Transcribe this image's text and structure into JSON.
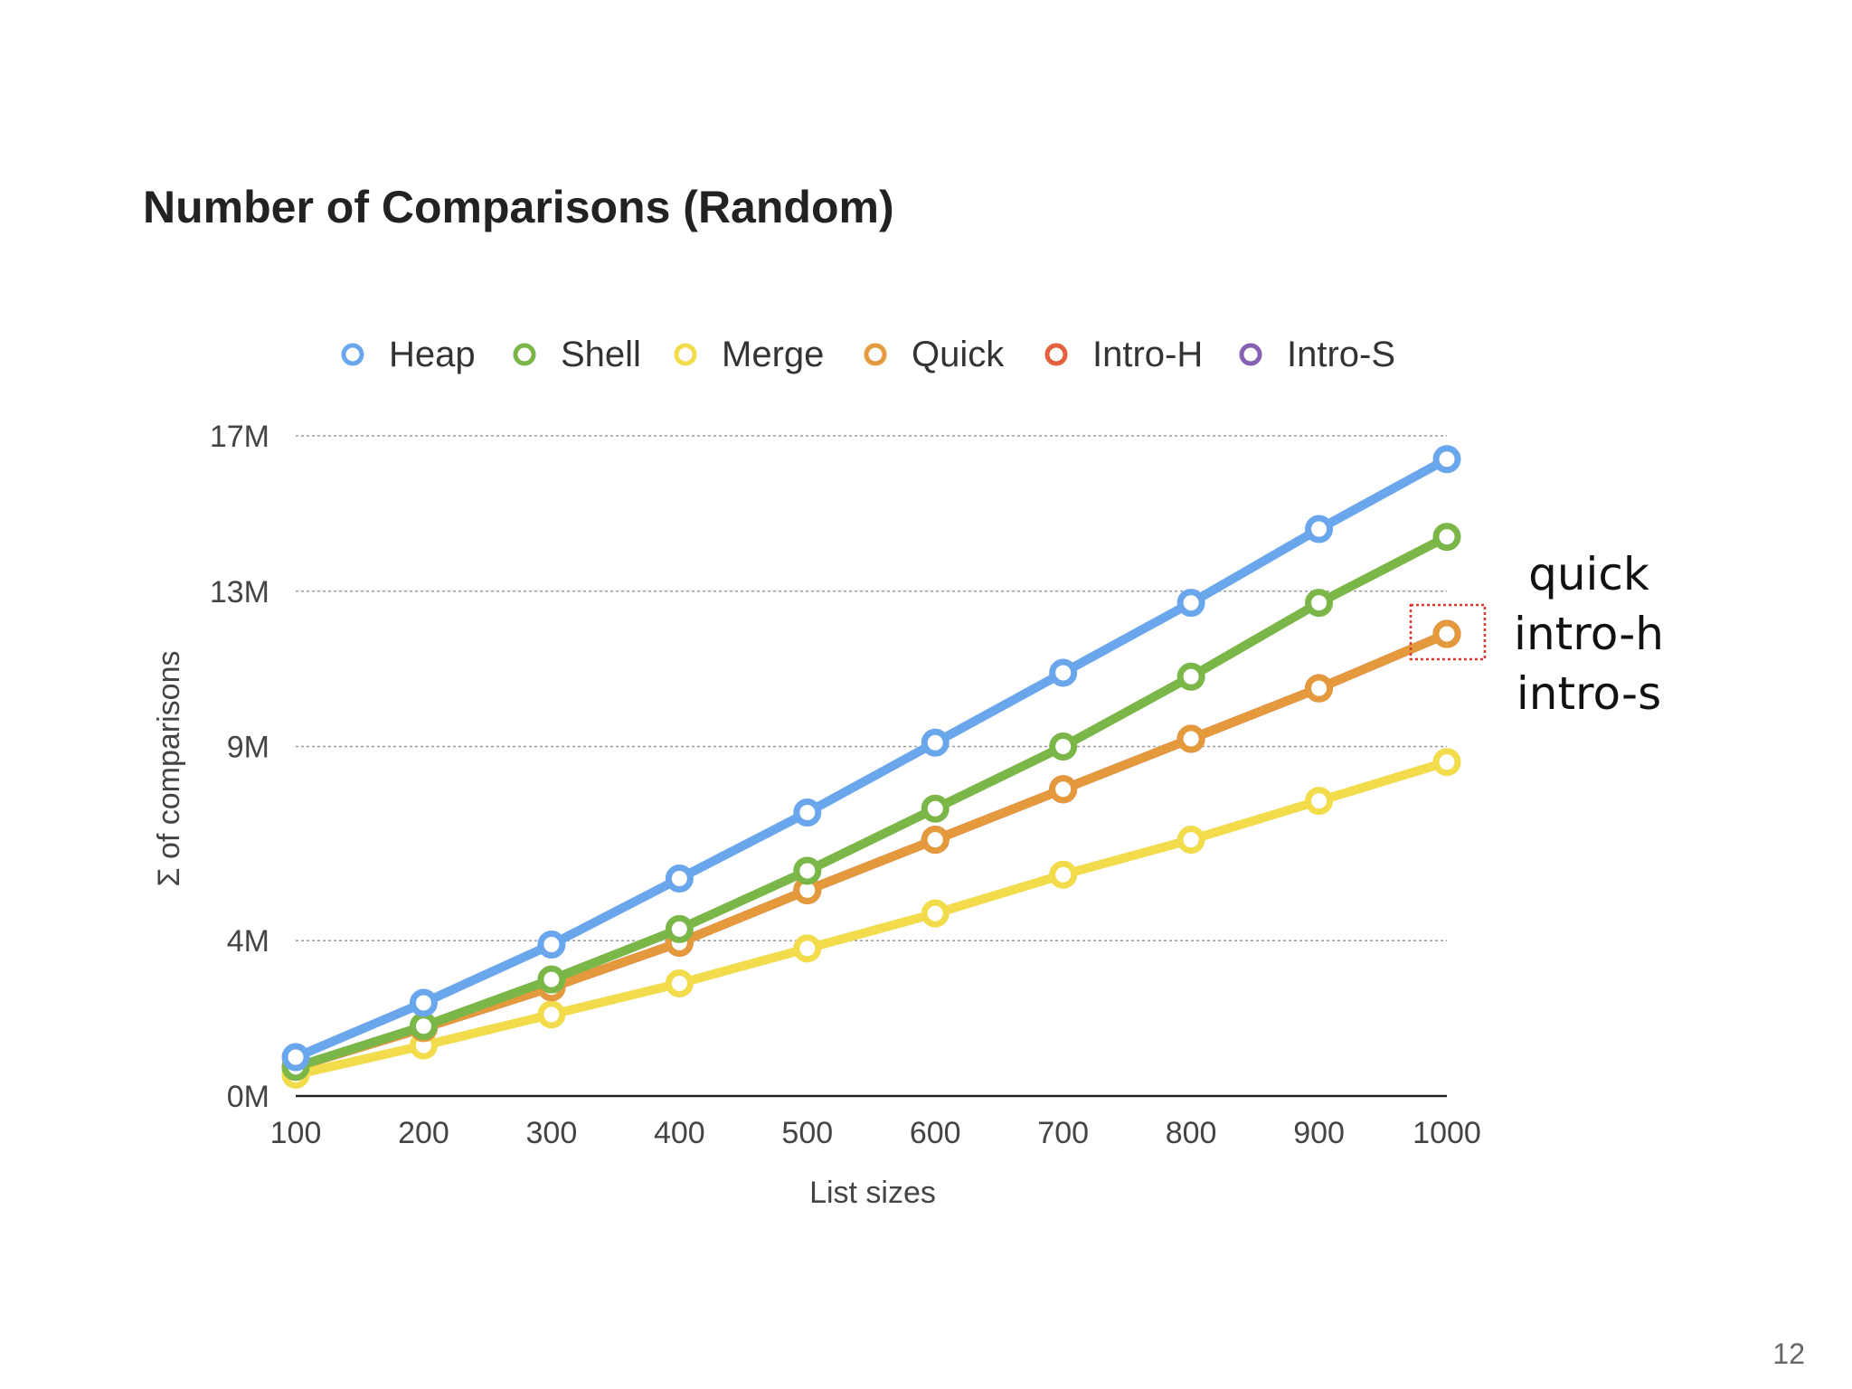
{
  "slide": {
    "title": "Number of Comparisons (Random)",
    "page_number": "12"
  },
  "chart_data": {
    "type": "line",
    "title": "",
    "xlabel": "List sizes",
    "ylabel": "Σ of comparisons",
    "x": [
      100,
      200,
      300,
      400,
      500,
      600,
      700,
      800,
      900,
      1000
    ],
    "x_tick_labels": [
      "100",
      "200",
      "300",
      "400",
      "500",
      "600",
      "700",
      "800",
      "900",
      "1000"
    ],
    "y_ticks": [
      0,
      4,
      9,
      13,
      17
    ],
    "y_tick_labels": [
      "0M",
      "4M",
      "9M",
      "13M",
      "17M"
    ],
    "ylim": [
      0,
      17
    ],
    "y_unit": "M",
    "grid": true,
    "legend_position": "top",
    "series": [
      {
        "name": "Heap",
        "color": "#6aa6ec",
        "values": [
          1.0,
          2.4,
          3.9,
          5.6,
          7.3,
          9.1,
          10.9,
          12.7,
          14.6,
          16.4
        ]
      },
      {
        "name": "Shell",
        "color": "#7ab648",
        "values": [
          0.75,
          1.8,
          3.0,
          4.3,
          5.8,
          7.4,
          9.0,
          10.8,
          12.7,
          14.4
        ]
      },
      {
        "name": "Merge",
        "color": "#f2dc4b",
        "values": [
          0.55,
          1.3,
          2.1,
          2.9,
          3.8,
          4.7,
          5.7,
          6.6,
          7.6,
          8.6
        ]
      },
      {
        "name": "Quick",
        "color": "#e49a3c",
        "values": [
          0.75,
          1.75,
          2.8,
          3.95,
          5.3,
          6.6,
          7.9,
          9.2,
          10.5,
          11.9
        ]
      },
      {
        "name": "Intro-H",
        "color": "#e4603a",
        "values": [
          0.75,
          1.75,
          2.8,
          3.95,
          5.3,
          6.6,
          7.9,
          9.2,
          10.5,
          11.9
        ]
      },
      {
        "name": "Intro-S",
        "color": "#8661b4",
        "values": [
          0.75,
          1.75,
          2.8,
          3.95,
          5.3,
          6.6,
          7.9,
          9.2,
          10.5,
          11.9
        ]
      }
    ],
    "draw_order": [
      "Intro-S",
      "Intro-H",
      "Merge",
      "Quick",
      "Shell",
      "Heap"
    ],
    "annotations": [
      "quick",
      "intro-h",
      "intro-s"
    ]
  }
}
